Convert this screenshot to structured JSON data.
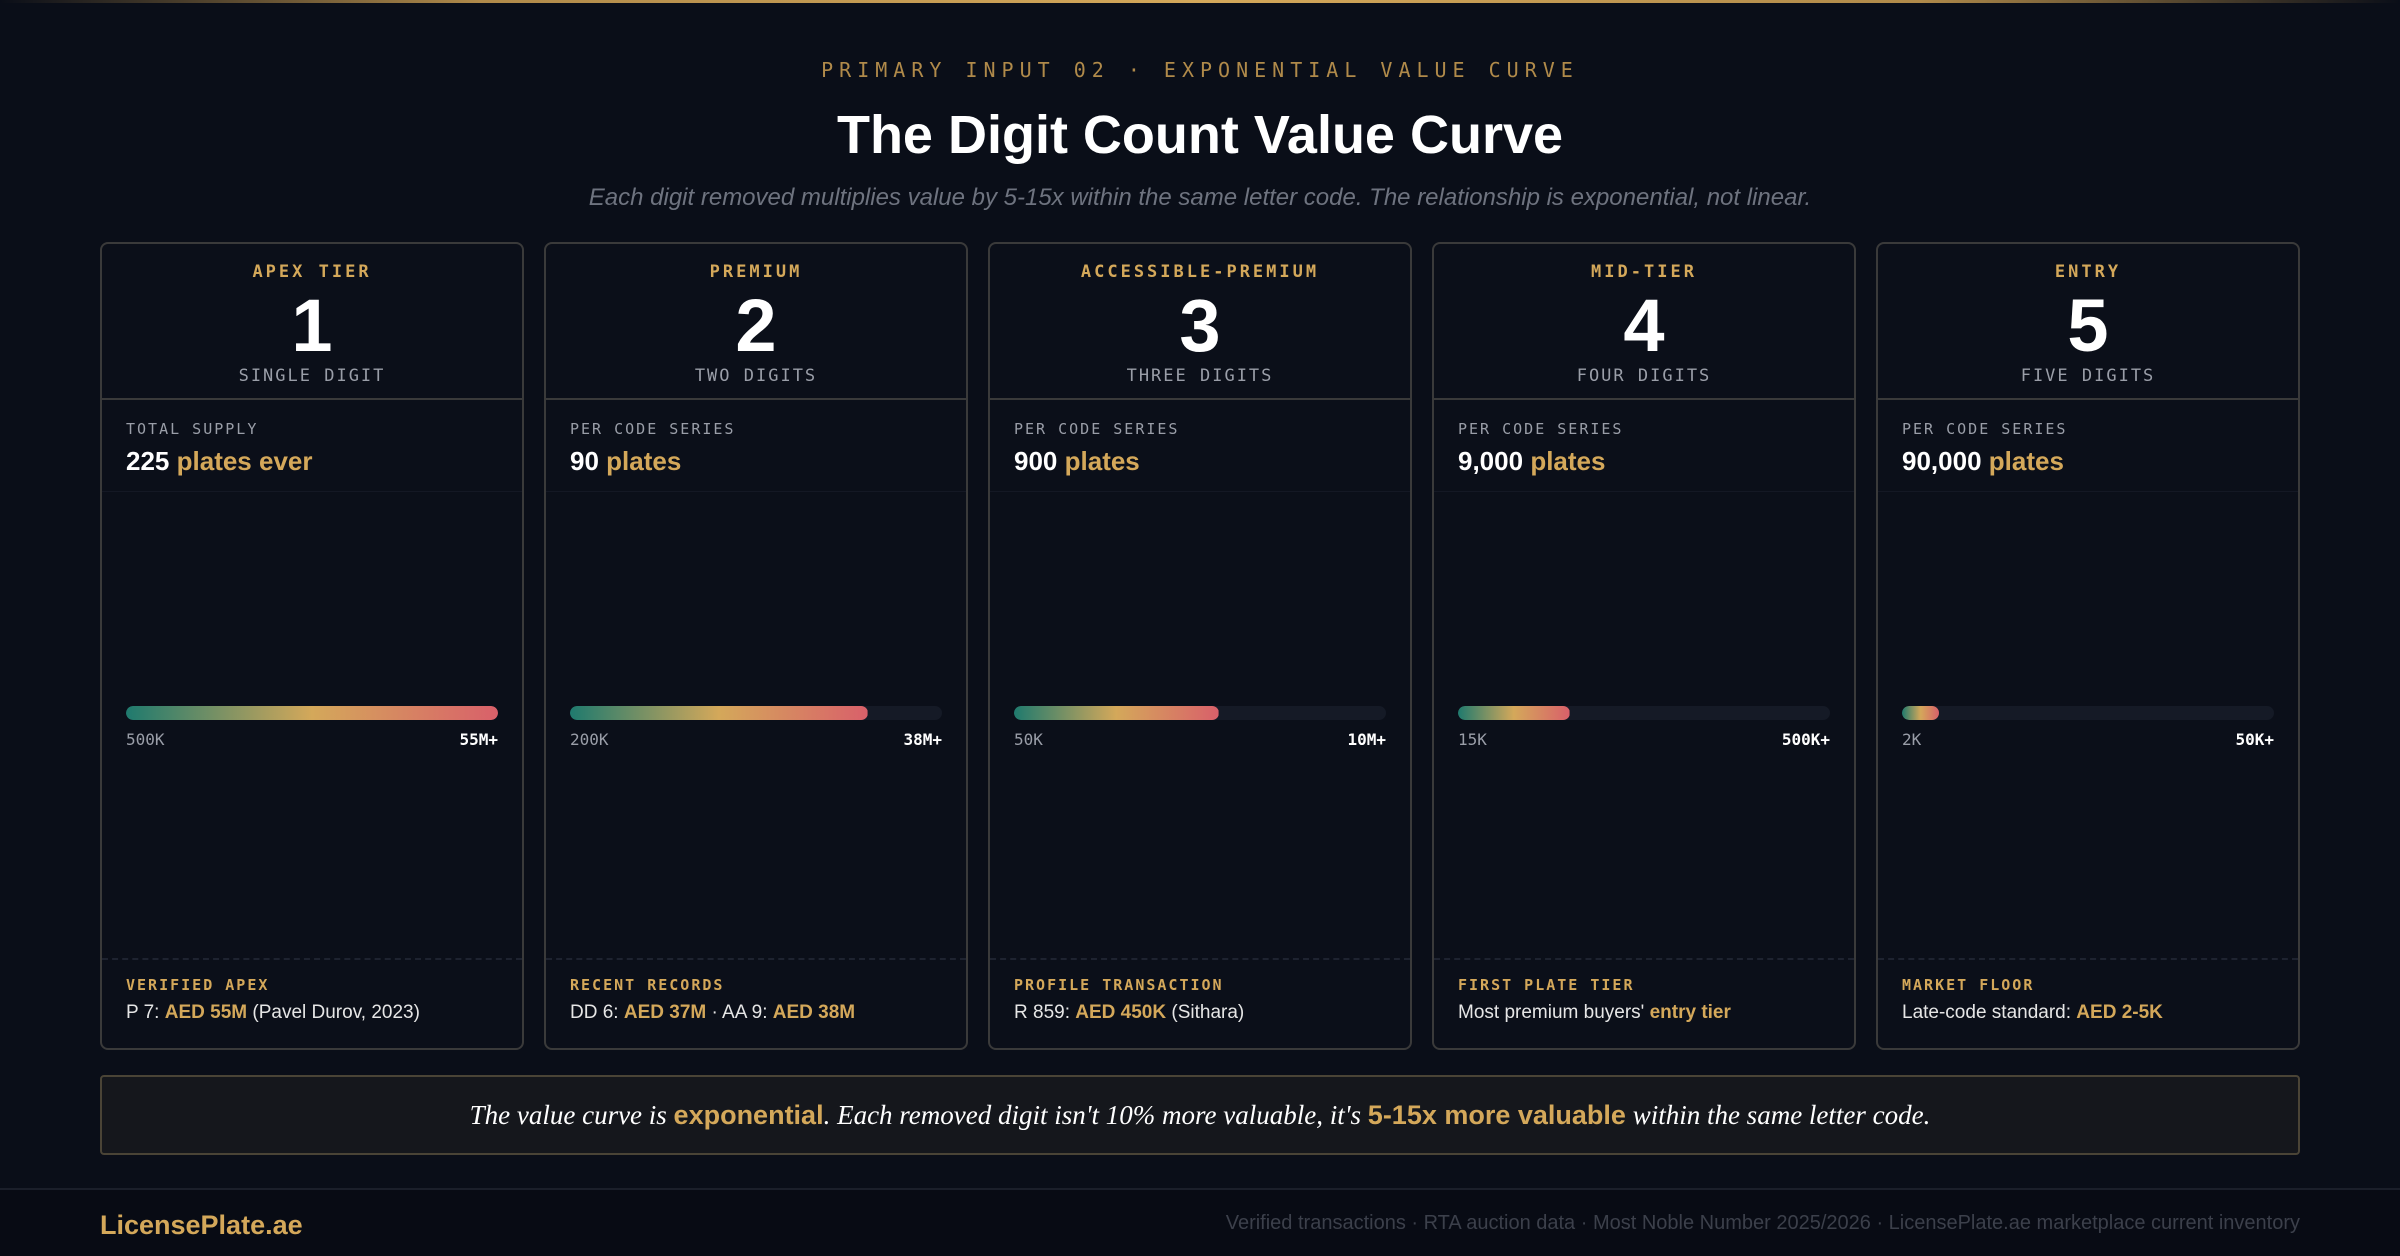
{
  "header": {
    "eyebrow": "PRIMARY INPUT 02 · EXPONENTIAL VALUE CURVE",
    "title": "The Digit Count Value Curve",
    "subtitle": "Each digit removed multiplies value by 5-15x within the same letter code. The relationship is exponential, not linear."
  },
  "cards": [
    {
      "tier": "APEX TIER",
      "digit": "1",
      "digits_label": "SINGLE DIGIT",
      "supply_label": "TOTAL SUPPLY",
      "supply_value": "225",
      "supply_unit": "plates ever",
      "range_min": "500K",
      "range_max": "55M+",
      "bar_fraction": 1.0,
      "foot_label": "VERIFIED APEX",
      "foot": {
        "a": "P 7: ",
        "b": "AED 55M",
        "c": " (Pavel Durov, 2023)"
      }
    },
    {
      "tier": "PREMIUM",
      "digit": "2",
      "digits_label": "TWO DIGITS",
      "supply_label": "PER CODE SERIES",
      "supply_value": "90",
      "supply_unit": "plates",
      "range_min": "200K",
      "range_max": "38M+",
      "bar_fraction": 0.8,
      "foot_label": "RECENT RECORDS",
      "foot": {
        "a": "DD 6: ",
        "b": "AED 37M",
        "c": " · AA 9: ",
        "d": "AED 38M"
      }
    },
    {
      "tier": "ACCESSIBLE-PREMIUM",
      "digit": "3",
      "digits_label": "THREE DIGITS",
      "supply_label": "PER CODE SERIES",
      "supply_value": "900",
      "supply_unit": "plates",
      "range_min": "50K",
      "range_max": "10M+",
      "bar_fraction": 0.55,
      "foot_label": "PROFILE TRANSACTION",
      "foot": {
        "a": "R 859: ",
        "b": "AED 450K",
        "c": " (Sithara)"
      }
    },
    {
      "tier": "MID-TIER",
      "digit": "4",
      "digits_label": "FOUR DIGITS",
      "supply_label": "PER CODE SERIES",
      "supply_value": "9,000",
      "supply_unit": "plates",
      "range_min": "15K",
      "range_max": "500K+",
      "bar_fraction": 0.3,
      "foot_label": "FIRST PLATE TIER",
      "foot": {
        "a": "Most premium buyers' ",
        "b": "entry tier",
        "c": ""
      }
    },
    {
      "tier": "ENTRY",
      "digit": "5",
      "digits_label": "FIVE DIGITS",
      "supply_label": "PER CODE SERIES",
      "supply_value": "90,000",
      "supply_unit": "plates",
      "range_min": "2K",
      "range_max": "50K+",
      "bar_fraction": 0.1,
      "foot_label": "MARKET FLOOR",
      "foot": {
        "a": "Late-code standard: ",
        "b": "AED 2-5K",
        "c": ""
      }
    }
  ],
  "callout": {
    "t1": "The value curve is ",
    "h1": "exponential",
    "t2": ". Each removed digit isn't 10% more valuable, it's ",
    "h2": "5-15x more valuable",
    "t3": " within the same letter code."
  },
  "footer": {
    "brand": "LicensePlate.ae",
    "sources": "Verified transactions · RTA auction data · Most Noble Number 2025/2026 · LicensePlate.ae marketplace current inventory"
  },
  "colors": {
    "accent": "#d4a85a",
    "bar_start": "#1f7a6e",
    "bar_mid": "#d4a85a",
    "bar_end": "#d9606a"
  }
}
